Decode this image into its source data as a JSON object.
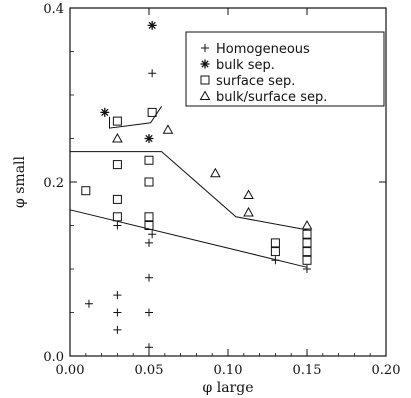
{
  "chart_data": {
    "type": "scatter",
    "xlabel": "φ large",
    "ylabel": "φ small",
    "xlim": [
      0.0,
      0.2
    ],
    "ylim": [
      0.0,
      0.4
    ],
    "x_ticks": [
      "0.00",
      "0.05",
      "0.10",
      "0.15",
      "0.20"
    ],
    "y_ticks": [
      "0.0",
      "0.2",
      "0.4"
    ],
    "legend_position": "top-right",
    "series": [
      {
        "name": "Homogeneous",
        "marker": "plus",
        "points": [
          [
            0.012,
            0.06
          ],
          [
            0.03,
            0.07
          ],
          [
            0.03,
            0.05
          ],
          [
            0.03,
            0.03
          ],
          [
            0.03,
            0.15
          ],
          [
            0.05,
            0.01
          ],
          [
            0.05,
            0.05
          ],
          [
            0.05,
            0.09
          ],
          [
            0.05,
            0.13
          ],
          [
            0.052,
            0.14
          ],
          [
            0.052,
            0.325
          ],
          [
            0.13,
            0.11
          ],
          [
            0.15,
            0.1
          ]
        ]
      },
      {
        "name": "bulk sep.",
        "marker": "asterisk",
        "points": [
          [
            0.022,
            0.28
          ],
          [
            0.052,
            0.38
          ],
          [
            0.05,
            0.25
          ]
        ]
      },
      {
        "name": "surface sep.",
        "marker": "square",
        "points": [
          [
            0.01,
            0.19
          ],
          [
            0.03,
            0.27
          ],
          [
            0.03,
            0.22
          ],
          [
            0.03,
            0.18
          ],
          [
            0.03,
            0.16
          ],
          [
            0.05,
            0.225
          ],
          [
            0.05,
            0.2
          ],
          [
            0.05,
            0.16
          ],
          [
            0.05,
            0.15
          ],
          [
            0.052,
            0.28
          ],
          [
            0.13,
            0.13
          ],
          [
            0.13,
            0.12
          ],
          [
            0.15,
            0.14
          ],
          [
            0.15,
            0.13
          ],
          [
            0.15,
            0.12
          ],
          [
            0.15,
            0.11
          ]
        ]
      },
      {
        "name": "bulk/surface sep.",
        "marker": "triangle",
        "points": [
          [
            0.03,
            0.25
          ],
          [
            0.062,
            0.26
          ],
          [
            0.092,
            0.21
          ],
          [
            0.113,
            0.185
          ],
          [
            0.113,
            0.165
          ],
          [
            0.15,
            0.15
          ]
        ]
      }
    ],
    "boundary_lines": [
      [
        [
          0.0,
          0.168
        ],
        [
          0.15,
          0.102
        ]
      ],
      [
        [
          0.0,
          0.235
        ],
        [
          0.058,
          0.235
        ],
        [
          0.105,
          0.16
        ],
        [
          0.15,
          0.145
        ]
      ],
      [
        [
          0.025,
          0.275
        ],
        [
          0.025,
          0.262
        ],
        [
          0.051,
          0.268
        ],
        [
          0.058,
          0.287
        ]
      ]
    ]
  }
}
